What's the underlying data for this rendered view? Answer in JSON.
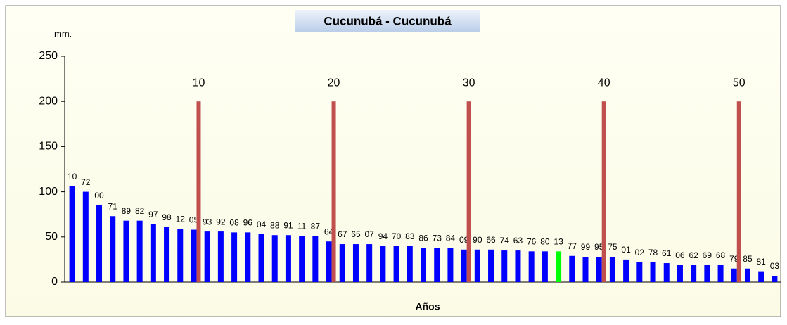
{
  "chart_data": {
    "type": "bar",
    "title": "Cucunubá - Cucunubá",
    "y_unit": "mm.",
    "x_label": "Años",
    "categories": [
      "10",
      "72",
      "00",
      "71",
      "89",
      "82",
      "97",
      "98",
      "12",
      "05",
      "93",
      "92",
      "08",
      "96",
      "04",
      "88",
      "91",
      "11",
      "87",
      "64",
      "67",
      "65",
      "07",
      "94",
      "70",
      "83",
      "86",
      "73",
      "84",
      "09",
      "90",
      "66",
      "74",
      "63",
      "76",
      "80",
      "13",
      "77",
      "99",
      "95",
      "75",
      "01",
      "02",
      "78",
      "61",
      "06",
      "62",
      "69",
      "68",
      "79",
      "85",
      "81",
      "03"
    ],
    "values": [
      106,
      100,
      85,
      73,
      68,
      68,
      64,
      61,
      59,
      58,
      56,
      56,
      55,
      55,
      53,
      52,
      52,
      51,
      51,
      45,
      42,
      42,
      42,
      40,
      40,
      40,
      38,
      38,
      38,
      36,
      36,
      36,
      35,
      35,
      34,
      34,
      34,
      29,
      28,
      28,
      28,
      25,
      22,
      22,
      21,
      19,
      19,
      19,
      19,
      15,
      15,
      12,
      7
    ],
    "color": "#0000ff",
    "highlight_category": "13",
    "highlight_color": "#00ff00",
    "markers": {
      "positions": [
        10,
        20,
        30,
        40,
        50
      ],
      "value": 200,
      "color": "#c0504d"
    },
    "ylim": [
      0,
      250
    ],
    "yticks": [
      0,
      50,
      100,
      150,
      200,
      250
    ]
  }
}
